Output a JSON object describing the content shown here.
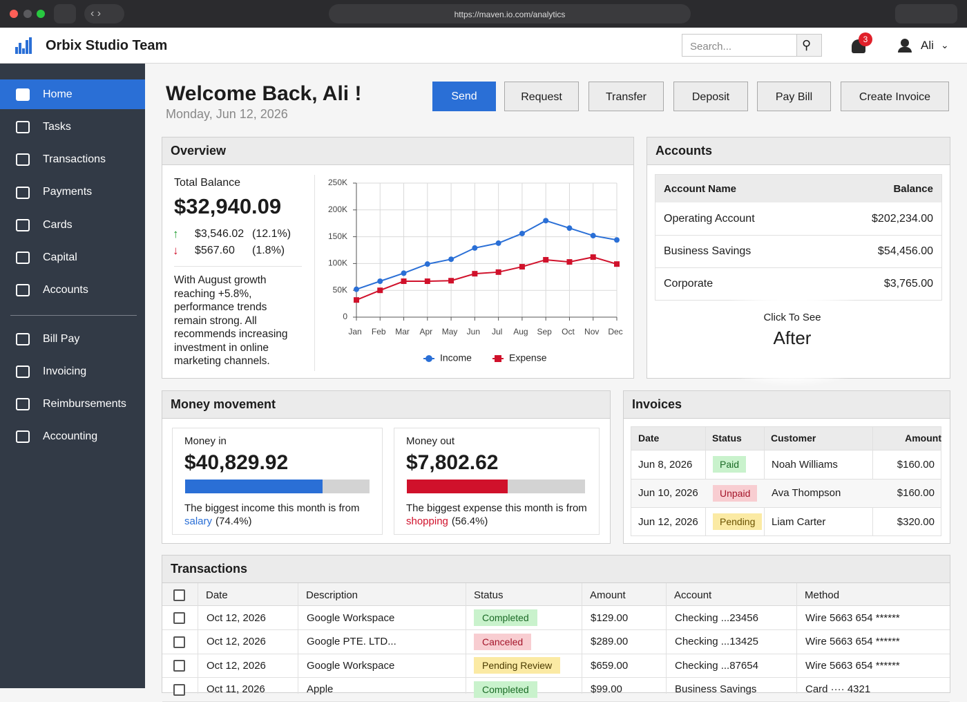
{
  "browser": {
    "url": "https://maven.io.com/analytics"
  },
  "header": {
    "brand": "Orbix Studio Team",
    "search_placeholder": "Search...",
    "notifications": 3,
    "user": "Ali"
  },
  "sidebar": {
    "main": [
      "Home",
      "Tasks",
      "Transactions",
      "Payments",
      "Cards",
      "Capital",
      "Accounts"
    ],
    "secondary": [
      "Bill Pay",
      "Invoicing",
      "Reimbursements",
      "Accounting"
    ]
  },
  "welcome": {
    "title": "Welcome Back, Ali !",
    "date": "Monday, Jun 12, 2026"
  },
  "actions": [
    "Send",
    "Request",
    "Transfer",
    "Deposit",
    "Pay Bill",
    "Create Invoice"
  ],
  "overview": {
    "title": "Overview",
    "balance_label": "Total Balance",
    "balance": "$32,940.09",
    "up_amount": "$3,546.02",
    "up_percent": "(12.1%)",
    "down_amount": "$567.60",
    "down_percent": "(1.8%)",
    "note": "With August growth reaching +5.8%, performance trends remain strong. All recommends increasing investment in online marketing channels."
  },
  "chart_data": {
    "type": "line",
    "categories": [
      "Jan",
      "Feb",
      "Mar",
      "Apr",
      "May",
      "Jun",
      "Jul",
      "Aug",
      "Sep",
      "Oct",
      "Nov",
      "Dec"
    ],
    "series": [
      {
        "name": "Income",
        "color": "#2a6fd6",
        "values": [
          52000,
          67000,
          82000,
          99000,
          108000,
          129000,
          138000,
          156000,
          180000,
          166000,
          152000,
          144000
        ]
      },
      {
        "name": "Expense",
        "color": "#d0112b",
        "values": [
          32000,
          50000,
          67000,
          67000,
          68000,
          81000,
          84000,
          94000,
          107000,
          103000,
          112000,
          99000
        ]
      }
    ],
    "ylim": [
      0,
      250000
    ],
    "yticks": [
      0,
      {
        "value": 50000,
        "label": "50K"
      },
      {
        "value": 100000,
        "label": "100K"
      },
      {
        "value": 150000,
        "label": "150K"
      },
      {
        "value": 200000,
        "label": "200K"
      },
      {
        "value": 250000,
        "label": "250K"
      }
    ],
    "grid": true,
    "legend": "bottom"
  },
  "accounts": {
    "title": "Accounts",
    "columns": [
      "Account Name",
      "Balance"
    ],
    "rows": [
      [
        "Operating Account",
        "$202,234.00"
      ],
      [
        "Business Savings",
        "$54,456.00"
      ],
      [
        "Corporate",
        "$3,765.00"
      ]
    ]
  },
  "overlay": {
    "caption": "Click To See",
    "action": "After"
  },
  "money_movement": {
    "title": "Money movement",
    "cards": [
      {
        "label": "Money in",
        "amount": "$40,829.92",
        "note": "The biggest income this month is from",
        "source": "salary",
        "share": 74.4,
        "share_label": "(74.4%)",
        "color": "#2a6fd6"
      },
      {
        "label": "Money out",
        "amount": "$7,802.62",
        "note": "The biggest expense this month is from",
        "source": "shopping",
        "share": 56.4,
        "share_label": "(56.4%)",
        "color": "#d0112b"
      }
    ]
  },
  "invoices": {
    "title": "Invoices",
    "columns": [
      "Date",
      "Status",
      "Customer",
      "Amount"
    ],
    "rows": [
      [
        "Jun 8, 2026",
        "Paid",
        "Noah Williams",
        "$160.00"
      ],
      [
        "Jun 10, 2026",
        "Unpaid",
        "Ava Thompson",
        "$160.00"
      ],
      [
        "Jun 12, 2026",
        "Pending",
        "Liam Carter",
        "$320.00"
      ]
    ]
  },
  "transactions": {
    "title": "Transactions",
    "columns": [
      "Date",
      "Description",
      "Status",
      "Amount",
      "Account",
      "Method"
    ],
    "rows": [
      [
        "Oct 12, 2026",
        "Google Workspace",
        "Completed",
        "$129.00",
        "Checking ...23456",
        "Wire 5663 654 ******"
      ],
      [
        "Oct 12, 2026",
        "Google PTE. LTD...",
        "Canceled",
        "$289.00",
        "Checking ...13425",
        "Wire 5663 654 ******"
      ],
      [
        "Oct 12, 2026",
        "Google Workspace",
        "Pending Review",
        "$659.00",
        "Checking ...87654",
        "Wire 5663 654 ******"
      ],
      [
        "Oct 11, 2026",
        "Apple",
        "Completed",
        "$99.00",
        "Business Savings",
        "Card ···· 4321"
      ]
    ]
  }
}
